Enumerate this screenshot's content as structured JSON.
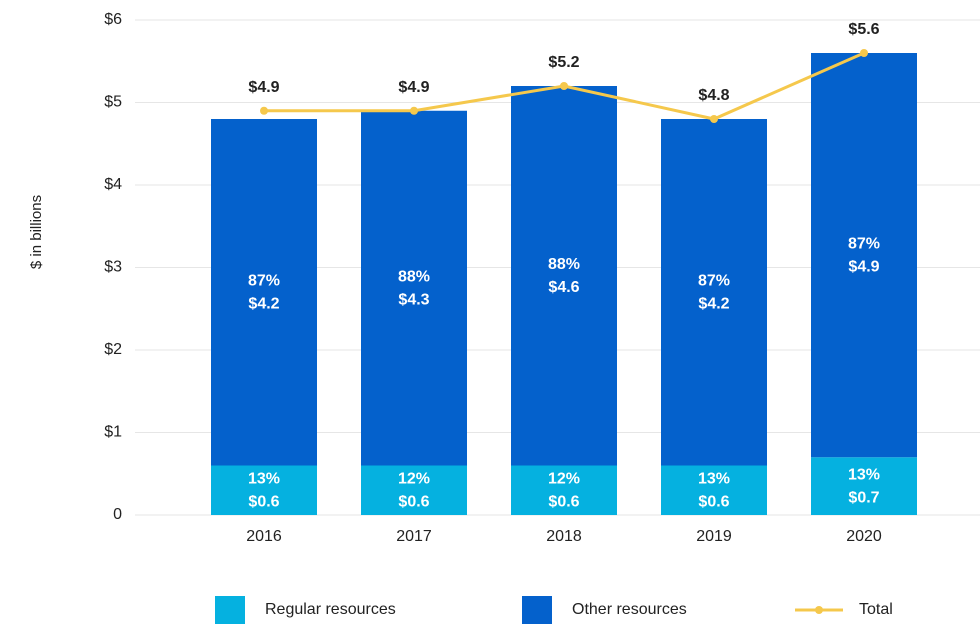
{
  "chart_data": {
    "type": "bar",
    "y_label": "$ in billions",
    "categories": [
      "2016",
      "2017",
      "2018",
      "2019",
      "2020"
    ],
    "ylim": [
      0,
      6
    ],
    "yticks": [
      0,
      {
        "value": 1,
        "label": "$1"
      },
      {
        "value": 2,
        "label": "$2"
      },
      {
        "value": 3,
        "label": "$3"
      },
      {
        "value": 4,
        "label": "$4"
      },
      {
        "value": 5,
        "label": "$5"
      },
      {
        "value": 6,
        "label": "$6"
      }
    ],
    "grid": true,
    "legend": "bottom",
    "series": [
      {
        "name": "Regular resources",
        "type": "bar",
        "color": "#05b1e0",
        "values": [
          0.6,
          0.6,
          0.6,
          0.6,
          0.7
        ],
        "value_labels": [
          "$0.6",
          "$0.6",
          "$0.6",
          "$0.6",
          "$0.7"
        ],
        "share_labels": [
          "13%",
          "12%",
          "12%",
          "13%",
          "13%"
        ]
      },
      {
        "name": "Other resources",
        "type": "bar",
        "color": "#0461cc",
        "values": [
          4.2,
          4.3,
          4.6,
          4.2,
          4.9
        ],
        "value_labels": [
          "$4.2",
          "$4.3",
          "$4.6",
          "$4.2",
          "$4.9"
        ],
        "share_labels": [
          "87%",
          "88%",
          "88%",
          "87%",
          "87%"
        ]
      },
      {
        "name": "Total",
        "type": "line",
        "color": "#f5c84c",
        "values": [
          4.9,
          4.9,
          5.2,
          4.8,
          5.6
        ],
        "value_labels": [
          "$4.9",
          "$4.9",
          "$5.2",
          "$4.8",
          "$5.6"
        ]
      }
    ]
  }
}
